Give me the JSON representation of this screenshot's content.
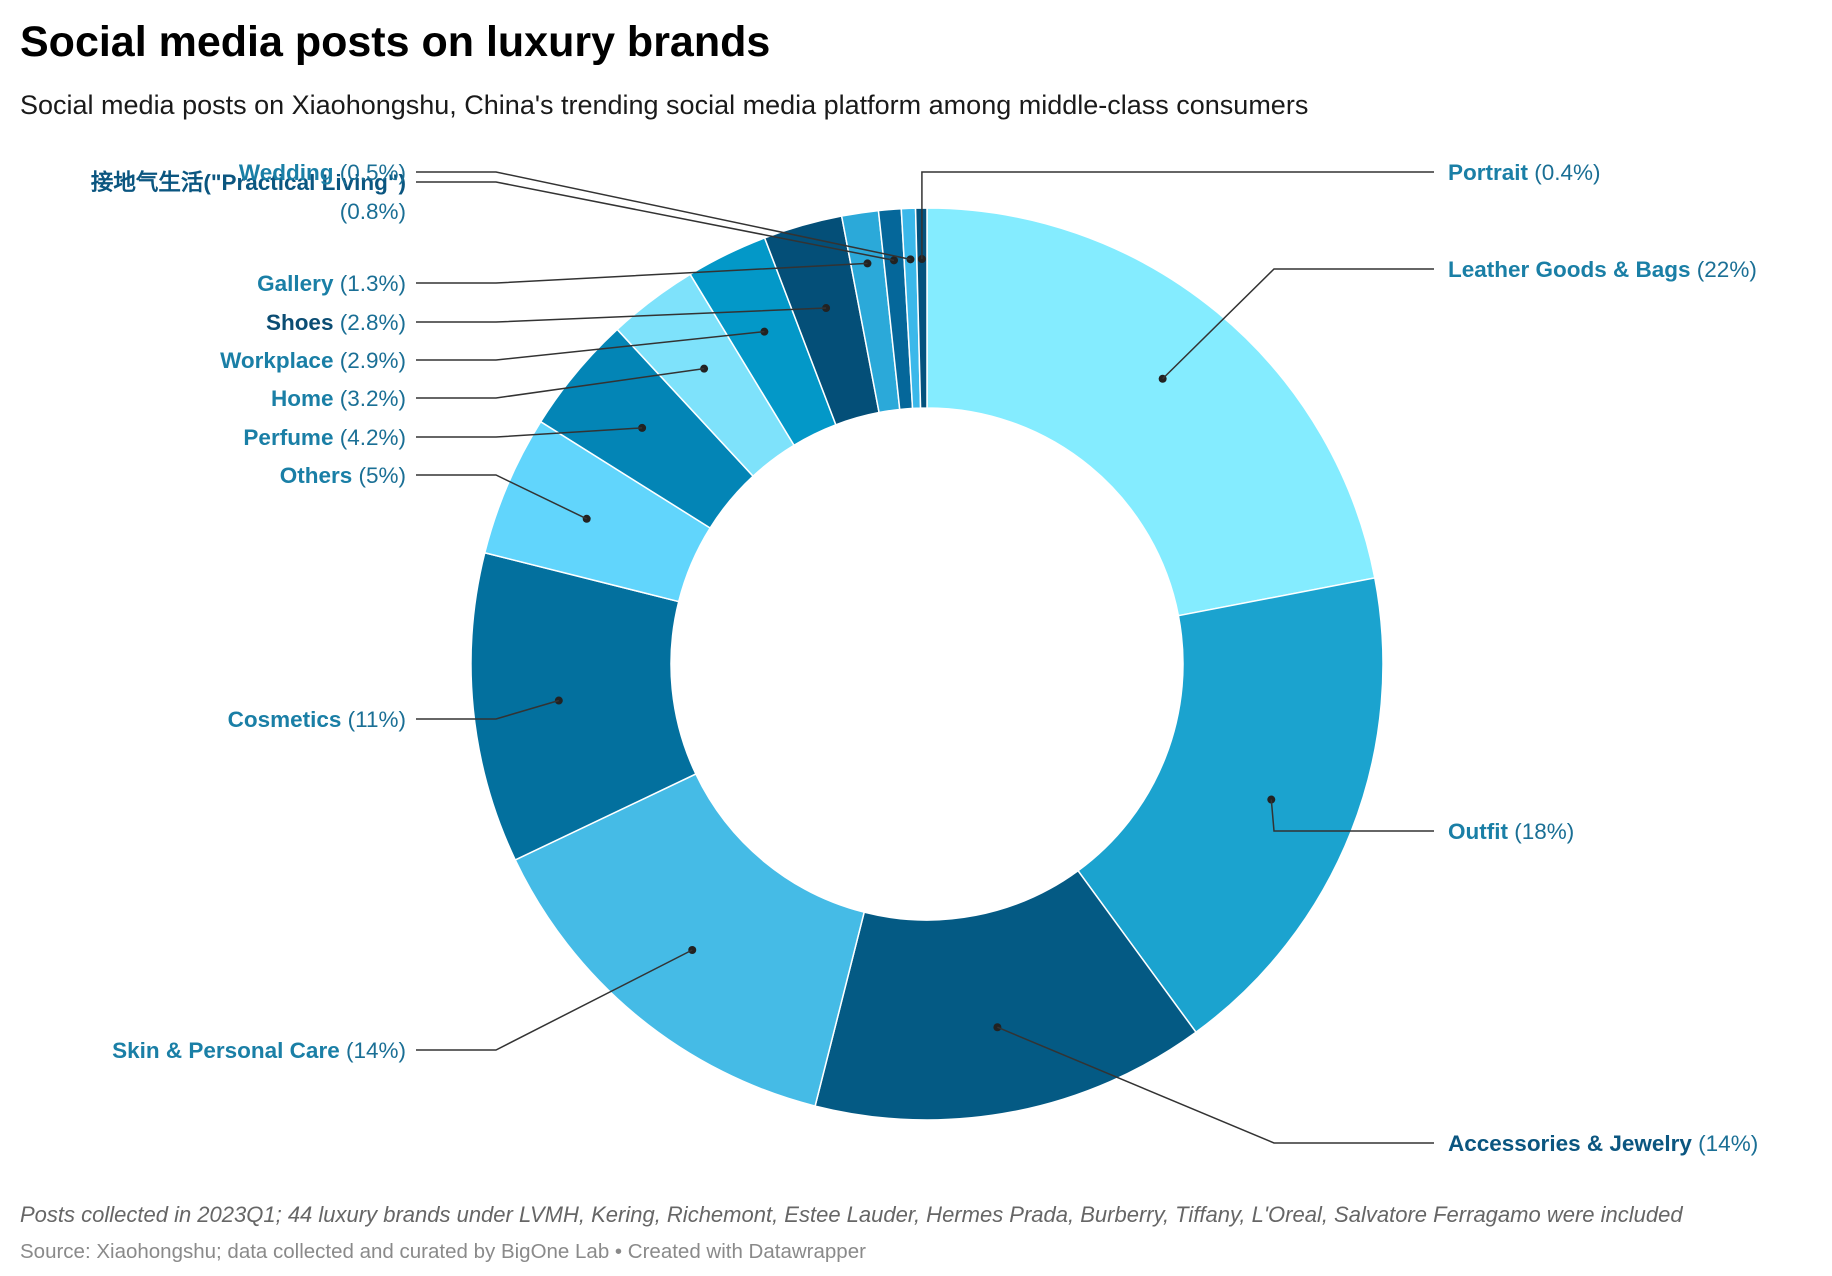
{
  "title": "Social media posts on luxury brands",
  "subtitle": "Social media posts on Xiaohongshu, China's trending social media platform among middle-class consumers",
  "notes": "Posts collected in 2023Q1; 44 luxury brands under LVMH, Kering, Richemont, Estee Lauder, Hermes Prada, Burberry, Tiffany, L'Oreal, Salvatore Ferragamo were included",
  "source": "Source: Xiaohongshu; data collected and curated by BigOne Lab • Created with Datawrapper",
  "chart_data": {
    "type": "pie",
    "variant": "donut",
    "unit": "%",
    "slices": [
      {
        "label": "Leather Goods & Bags",
        "value": 22,
        "display": "22%",
        "color": "#84ecff",
        "label_color": "#1a7fa6"
      },
      {
        "label": "Outfit",
        "value": 18,
        "display": "18%",
        "color": "#1ba3cf",
        "label_color": "#1a7fa6"
      },
      {
        "label": "Accessories & Jewelry",
        "value": 14,
        "display": "14%",
        "color": "#045a84",
        "label_color": "#0b5680"
      },
      {
        "label": "Skin & Personal Care",
        "value": 14,
        "display": "14%",
        "color": "#45bbe6",
        "label_color": "#1a7fa6"
      },
      {
        "label": "Cosmetics",
        "value": 11,
        "display": "11%",
        "color": "#03709e",
        "label_color": "#1a7fa6"
      },
      {
        "label": "Others",
        "value": 5,
        "display": "5%",
        "color": "#61d5fc",
        "label_color": "#1a7fa6"
      },
      {
        "label": "Perfume",
        "value": 4.2,
        "display": "4.2%",
        "color": "#0385b6",
        "label_color": "#1a7fa6"
      },
      {
        "label": "Home",
        "value": 3.2,
        "display": "3.2%",
        "color": "#7ee2fb",
        "label_color": "#1a7fa6"
      },
      {
        "label": "Workplace",
        "value": 2.9,
        "display": "2.9%",
        "color": "#0398c8",
        "label_color": "#1a7fa6"
      },
      {
        "label": "Shoes",
        "value": 2.8,
        "display": "2.8%",
        "color": "#044f78",
        "label_color": "#0b4d73"
      },
      {
        "label": "Gallery",
        "value": 1.3,
        "display": "1.3%",
        "color": "#2ba9d9",
        "label_color": "#1a7fa6"
      },
      {
        "label": "接地气生活(\"Practical Living\")",
        "value": 0.8,
        "display": "0.8%",
        "color": "#05679a",
        "label_color": "#0b5680"
      },
      {
        "label": "Wedding",
        "value": 0.5,
        "display": "0.5%",
        "color": "#3bb8ea",
        "label_color": "#1a7fa6"
      },
      {
        "label": "Portrait",
        "value": 0.4,
        "display": "0.4%",
        "color": "#03527d",
        "label_color": "#1a7fa6"
      }
    ]
  }
}
